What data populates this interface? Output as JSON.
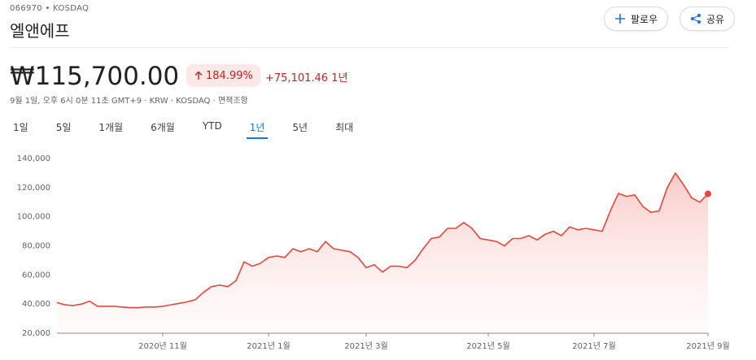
{
  "header": {
    "ticker": "066970 • KOSDAQ",
    "name": "엘앤에프",
    "follow": "팔로우",
    "share": "공유"
  },
  "quote": {
    "price": "₩115,700.00",
    "change_percent": "184.99%",
    "change_amount": "+75,101.46",
    "period": "1년",
    "meta": "9월 1일, 오후 6시 0분 11초 GMT+9 · KRW · KOSDAQ · 면책조항"
  },
  "tabs": {
    "items": [
      "1일",
      "5일",
      "1개월",
      "6개월",
      "YTD",
      "1년",
      "5년",
      "최대"
    ],
    "active": 5
  },
  "chart_data": {
    "type": "line",
    "categories": [
      null,
      null,
      null,
      null,
      null,
      null,
      null,
      null,
      null,
      null,
      null,
      null,
      null,
      "2020년 11월",
      null,
      null,
      null,
      null,
      null,
      null,
      null,
      null,
      null,
      null,
      null,
      null,
      "2021년 1월",
      null,
      null,
      null,
      null,
      null,
      null,
      null,
      null,
      null,
      null,
      null,
      "2021년 3월",
      null,
      null,
      null,
      null,
      null,
      null,
      null,
      null,
      null,
      null,
      null,
      null,
      null,
      null,
      "2021년 5월",
      null,
      null,
      null,
      null,
      null,
      null,
      null,
      null,
      null,
      null,
      null,
      null,
      "2021년 7월",
      null,
      null,
      null,
      null,
      null,
      null,
      null,
      null,
      null,
      null,
      null,
      null,
      null,
      "2021년 9월"
    ],
    "series": [
      {
        "name": "엘앤에프",
        "color": "#e8453c",
        "values": [
          41000,
          39500,
          39000,
          40000,
          42000,
          38500,
          38500,
          38500,
          38000,
          37500,
          37500,
          38000,
          38000,
          38500,
          39500,
          40500,
          41500,
          43000,
          48000,
          52000,
          53000,
          52000,
          56000,
          69000,
          66000,
          68000,
          72000,
          73000,
          72000,
          78000,
          76000,
          78000,
          76000,
          83000,
          78000,
          77000,
          76000,
          72000,
          65000,
          67000,
          62000,
          66000,
          66000,
          65000,
          70000,
          78000,
          85000,
          86000,
          92000,
          92000,
          96000,
          92000,
          85000,
          84000,
          83000,
          80000,
          85000,
          85000,
          87000,
          84000,
          88000,
          90000,
          87000,
          93000,
          91000,
          92000,
          91000,
          90000,
          104000,
          116000,
          114000,
          115000,
          107000,
          103000,
          104000,
          120000,
          130000,
          122000,
          113000,
          110000,
          115700
        ]
      }
    ],
    "ylim": [
      20000,
      140000
    ],
    "yticks": [
      {
        "value": 20000,
        "label": "20,000"
      },
      {
        "value": 40000,
        "label": "40,000"
      },
      {
        "value": 60000,
        "label": "60,000"
      },
      {
        "value": 80000,
        "label": "80,000"
      },
      {
        "value": 100000,
        "label": "100,000"
      },
      {
        "value": 120000,
        "label": "120,000"
      },
      {
        "value": 140000,
        "label": "140,000"
      }
    ],
    "grid": false
  }
}
